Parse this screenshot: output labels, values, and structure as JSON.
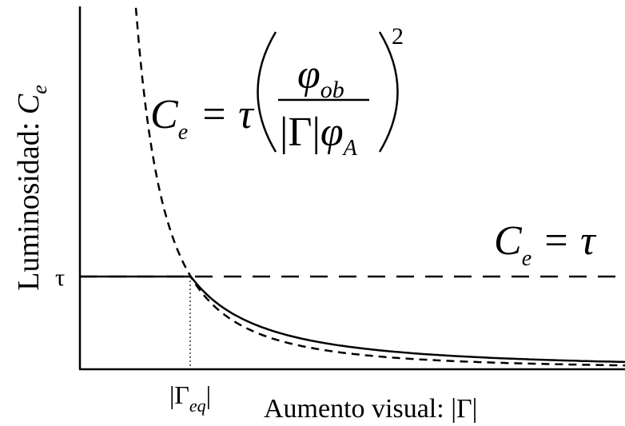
{
  "axes": {
    "y_label": {
      "text": "Luminosidad: ",
      "symbol": "C",
      "subscript": "e"
    },
    "x_label": "Aumento visual: |Γ|",
    "y_tick": "τ",
    "x_tick": {
      "open": "|Γ",
      "subscript": "eq",
      "close": "|"
    }
  },
  "equations": [
    {
      "lhs": "C",
      "lhs_sub": "e",
      "rel": "= τ",
      "num": "φ",
      "num_sub": "ob",
      "den_abs": "|Γ|",
      "den": "φ",
      "den_sub": "A",
      "power": "2"
    },
    {
      "lhs": "C",
      "lhs_sub": "e",
      "rel": "= τ"
    }
  ]
}
